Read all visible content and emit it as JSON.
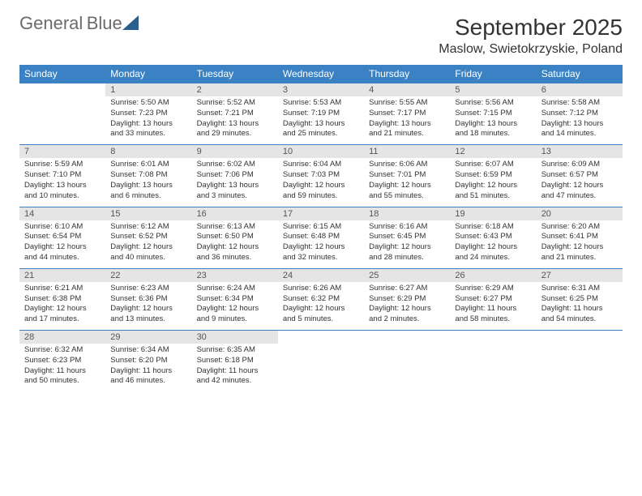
{
  "logo": {
    "text1": "General",
    "text2": "Blue"
  },
  "title": "September 2025",
  "location": "Maslow, Swietokrzyskie, Poland",
  "colors": {
    "header_bg": "#3b82c4",
    "band_bg": "#e5e5e5",
    "rule": "#3b82c4",
    "text": "#333333",
    "logo_gray": "#6b6b6b",
    "logo_blue": "#3b82c4"
  },
  "dayNames": [
    "Sunday",
    "Monday",
    "Tuesday",
    "Wednesday",
    "Thursday",
    "Friday",
    "Saturday"
  ],
  "weeks": [
    [
      null,
      {
        "n": "1",
        "sr": "5:50 AM",
        "ss": "7:23 PM",
        "dl1": "Daylight: 13 hours",
        "dl2": "and 33 minutes."
      },
      {
        "n": "2",
        "sr": "5:52 AM",
        "ss": "7:21 PM",
        "dl1": "Daylight: 13 hours",
        "dl2": "and 29 minutes."
      },
      {
        "n": "3",
        "sr": "5:53 AM",
        "ss": "7:19 PM",
        "dl1": "Daylight: 13 hours",
        "dl2": "and 25 minutes."
      },
      {
        "n": "4",
        "sr": "5:55 AM",
        "ss": "7:17 PM",
        "dl1": "Daylight: 13 hours",
        "dl2": "and 21 minutes."
      },
      {
        "n": "5",
        "sr": "5:56 AM",
        "ss": "7:15 PM",
        "dl1": "Daylight: 13 hours",
        "dl2": "and 18 minutes."
      },
      {
        "n": "6",
        "sr": "5:58 AM",
        "ss": "7:12 PM",
        "dl1": "Daylight: 13 hours",
        "dl2": "and 14 minutes."
      }
    ],
    [
      {
        "n": "7",
        "sr": "5:59 AM",
        "ss": "7:10 PM",
        "dl1": "Daylight: 13 hours",
        "dl2": "and 10 minutes."
      },
      {
        "n": "8",
        "sr": "6:01 AM",
        "ss": "7:08 PM",
        "dl1": "Daylight: 13 hours",
        "dl2": "and 6 minutes."
      },
      {
        "n": "9",
        "sr": "6:02 AM",
        "ss": "7:06 PM",
        "dl1": "Daylight: 13 hours",
        "dl2": "and 3 minutes."
      },
      {
        "n": "10",
        "sr": "6:04 AM",
        "ss": "7:03 PM",
        "dl1": "Daylight: 12 hours",
        "dl2": "and 59 minutes."
      },
      {
        "n": "11",
        "sr": "6:06 AM",
        "ss": "7:01 PM",
        "dl1": "Daylight: 12 hours",
        "dl2": "and 55 minutes."
      },
      {
        "n": "12",
        "sr": "6:07 AM",
        "ss": "6:59 PM",
        "dl1": "Daylight: 12 hours",
        "dl2": "and 51 minutes."
      },
      {
        "n": "13",
        "sr": "6:09 AM",
        "ss": "6:57 PM",
        "dl1": "Daylight: 12 hours",
        "dl2": "and 47 minutes."
      }
    ],
    [
      {
        "n": "14",
        "sr": "6:10 AM",
        "ss": "6:54 PM",
        "dl1": "Daylight: 12 hours",
        "dl2": "and 44 minutes."
      },
      {
        "n": "15",
        "sr": "6:12 AM",
        "ss": "6:52 PM",
        "dl1": "Daylight: 12 hours",
        "dl2": "and 40 minutes."
      },
      {
        "n": "16",
        "sr": "6:13 AM",
        "ss": "6:50 PM",
        "dl1": "Daylight: 12 hours",
        "dl2": "and 36 minutes."
      },
      {
        "n": "17",
        "sr": "6:15 AM",
        "ss": "6:48 PM",
        "dl1": "Daylight: 12 hours",
        "dl2": "and 32 minutes."
      },
      {
        "n": "18",
        "sr": "6:16 AM",
        "ss": "6:45 PM",
        "dl1": "Daylight: 12 hours",
        "dl2": "and 28 minutes."
      },
      {
        "n": "19",
        "sr": "6:18 AM",
        "ss": "6:43 PM",
        "dl1": "Daylight: 12 hours",
        "dl2": "and 24 minutes."
      },
      {
        "n": "20",
        "sr": "6:20 AM",
        "ss": "6:41 PM",
        "dl1": "Daylight: 12 hours",
        "dl2": "and 21 minutes."
      }
    ],
    [
      {
        "n": "21",
        "sr": "6:21 AM",
        "ss": "6:38 PM",
        "dl1": "Daylight: 12 hours",
        "dl2": "and 17 minutes."
      },
      {
        "n": "22",
        "sr": "6:23 AM",
        "ss": "6:36 PM",
        "dl1": "Daylight: 12 hours",
        "dl2": "and 13 minutes."
      },
      {
        "n": "23",
        "sr": "6:24 AM",
        "ss": "6:34 PM",
        "dl1": "Daylight: 12 hours",
        "dl2": "and 9 minutes."
      },
      {
        "n": "24",
        "sr": "6:26 AM",
        "ss": "6:32 PM",
        "dl1": "Daylight: 12 hours",
        "dl2": "and 5 minutes."
      },
      {
        "n": "25",
        "sr": "6:27 AM",
        "ss": "6:29 PM",
        "dl1": "Daylight: 12 hours",
        "dl2": "and 2 minutes."
      },
      {
        "n": "26",
        "sr": "6:29 AM",
        "ss": "6:27 PM",
        "dl1": "Daylight: 11 hours",
        "dl2": "and 58 minutes."
      },
      {
        "n": "27",
        "sr": "6:31 AM",
        "ss": "6:25 PM",
        "dl1": "Daylight: 11 hours",
        "dl2": "and 54 minutes."
      }
    ],
    [
      {
        "n": "28",
        "sr": "6:32 AM",
        "ss": "6:23 PM",
        "dl1": "Daylight: 11 hours",
        "dl2": "and 50 minutes."
      },
      {
        "n": "29",
        "sr": "6:34 AM",
        "ss": "6:20 PM",
        "dl1": "Daylight: 11 hours",
        "dl2": "and 46 minutes."
      },
      {
        "n": "30",
        "sr": "6:35 AM",
        "ss": "6:18 PM",
        "dl1": "Daylight: 11 hours",
        "dl2": "and 42 minutes."
      },
      null,
      null,
      null,
      null
    ]
  ],
  "labels": {
    "sunrise": "Sunrise: ",
    "sunset": "Sunset: "
  }
}
